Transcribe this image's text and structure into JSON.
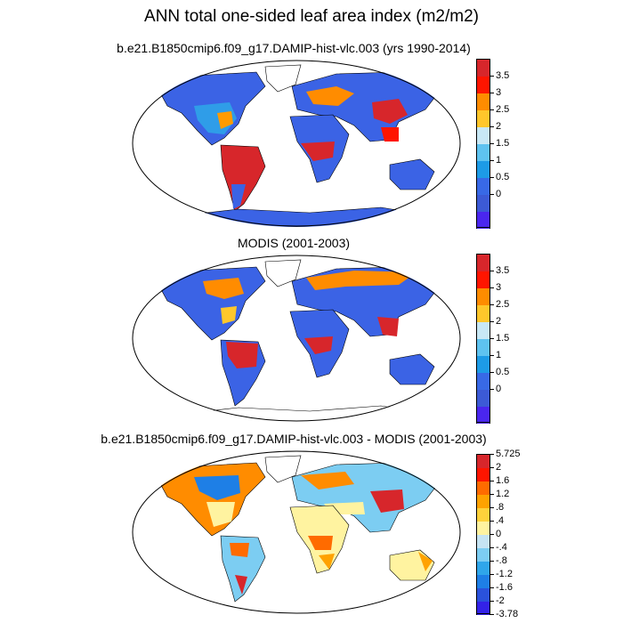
{
  "title": "ANN total one-sided leaf area index (m2/m2)",
  "panels": [
    {
      "title": "b.e21.B1850cmip6.f09_g17.DAMIP-hist-vlc.003 (yrs 1990-2014)",
      "colorbar": {
        "labels": [
          "3.5",
          "3",
          "2.5",
          "2",
          "1.5",
          "1",
          "0.5",
          "0"
        ],
        "colors": [
          "#d7262b",
          "#ff1500",
          "#ff8c00",
          "#ffc72b",
          "#c8e8f5",
          "#5ec3f0",
          "#1d9be6",
          "#3869e6",
          "#3c5ad6",
          "#4a26ef"
        ]
      }
    },
    {
      "title": "MODIS (2001-2003)",
      "colorbar": {
        "labels": [
          "3.5",
          "3",
          "2.5",
          "2",
          "1.5",
          "1",
          "0.5",
          "0"
        ],
        "colors": [
          "#d7262b",
          "#ff1500",
          "#ff8c00",
          "#ffc72b",
          "#c8e8f5",
          "#5ec3f0",
          "#1d9be6",
          "#3869e6",
          "#3c5ad6",
          "#4a26ef"
        ]
      }
    },
    {
      "title": "b.e21.B1850cmip6.f09_g17.DAMIP-hist-vlc.003 - MODIS (2001-2003)",
      "colorbar": {
        "labels": [
          "5.725",
          "2",
          "1.6",
          "1.2",
          ".8",
          ".4",
          "0",
          "-.4",
          "-.8",
          "-1.2",
          "-1.6",
          "-2",
          "-3.78"
        ],
        "colors": [
          "#d7262b",
          "#ff1500",
          "#ff6b00",
          "#ffa200",
          "#ffd23b",
          "#fff3a0",
          "#c6e4f3",
          "#7ccdf2",
          "#2fa6ea",
          "#1e7fe6",
          "#2a52dc",
          "#3322e8"
        ]
      }
    }
  ]
}
